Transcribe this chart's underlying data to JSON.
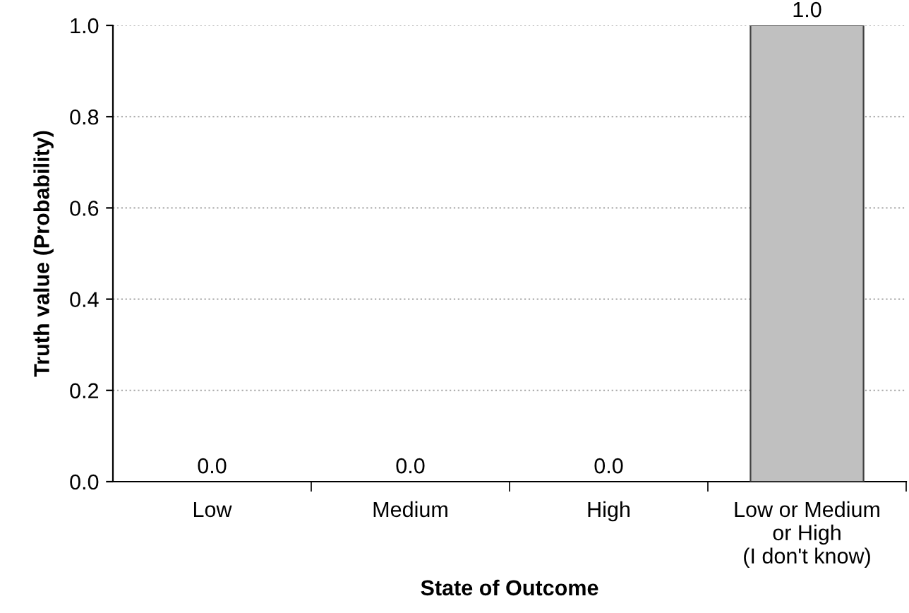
{
  "chart_data": {
    "type": "bar",
    "categories": [
      "Low",
      "Medium",
      "High",
      "Low or Medium\nor High\n(I don't know)"
    ],
    "values": [
      0,
      0,
      0,
      1.0
    ],
    "value_labels": [
      "0.0",
      "0.0",
      "0.0",
      "1.0"
    ],
    "color": "#c0c0c0",
    "xlabel": "State of Outcome",
    "ylabel": "Truth value (Probability)",
    "ylim": [
      0,
      1.0
    ],
    "yticks": [
      {
        "value": 0,
        "label": "0.0"
      },
      {
        "value": 0.2,
        "label": "0.2"
      },
      {
        "value": 0.4,
        "label": "0.4"
      },
      {
        "value": 0.6,
        "label": "0.6"
      },
      {
        "value": 0.8,
        "label": "0.8"
      },
      {
        "value": 1.0,
        "label": "1.0"
      }
    ],
    "grid": "y"
  }
}
